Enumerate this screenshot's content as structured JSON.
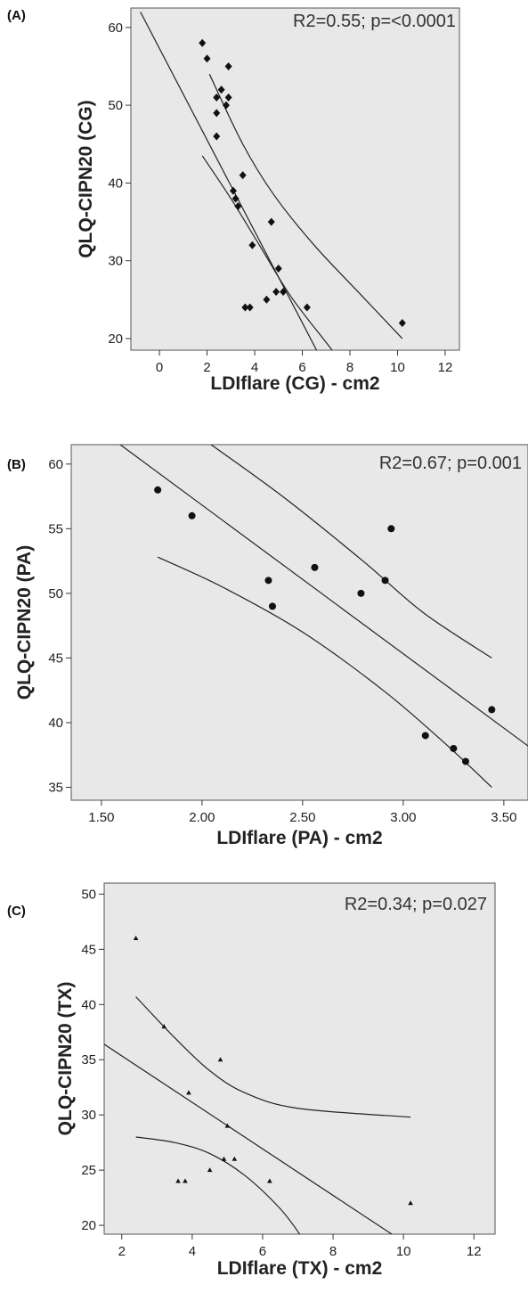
{
  "chart_data": [
    {
      "type": "scatter",
      "panel": "(A)",
      "xlabel": "LDIflare (CG) - cm2",
      "ylabel": "QLQ-CIPN20 (CG)",
      "annotation": "R2=0.55; p=<0.0001",
      "xlim": [
        -1.2,
        12.6
      ],
      "ylim": [
        18.5,
        62.5
      ],
      "xticks": [
        0,
        2,
        4,
        6,
        8,
        10,
        12
      ],
      "yticks": [
        20,
        30,
        40,
        50,
        60
      ],
      "marker": "diamond",
      "points": [
        {
          "x": 1.8,
          "y": 58
        },
        {
          "x": 2.0,
          "y": 56
        },
        {
          "x": 2.9,
          "y": 55
        },
        {
          "x": 2.6,
          "y": 52
        },
        {
          "x": 2.4,
          "y": 51
        },
        {
          "x": 2.9,
          "y": 51
        },
        {
          "x": 2.8,
          "y": 50
        },
        {
          "x": 2.4,
          "y": 49
        },
        {
          "x": 2.4,
          "y": 46
        },
        {
          "x": 3.5,
          "y": 41
        },
        {
          "x": 3.1,
          "y": 39
        },
        {
          "x": 3.2,
          "y": 38
        },
        {
          "x": 3.3,
          "y": 37
        },
        {
          "x": 4.7,
          "y": 35
        },
        {
          "x": 3.9,
          "y": 32
        },
        {
          "x": 5.0,
          "y": 29
        },
        {
          "x": 4.9,
          "y": 26
        },
        {
          "x": 5.2,
          "y": 26
        },
        {
          "x": 4.5,
          "y": 25
        },
        {
          "x": 3.6,
          "y": 24
        },
        {
          "x": 3.8,
          "y": 24
        },
        {
          "x": 6.2,
          "y": 24
        },
        {
          "x": 10.2,
          "y": 22
        }
      ],
      "fit_line": [
        {
          "x": -0.8,
          "y": 62
        },
        {
          "x": 6.6,
          "y": 18.5
        }
      ],
      "ci_upper": [
        {
          "x": 2.1,
          "y": 54
        },
        {
          "x": 3.5,
          "y": 45
        },
        {
          "x": 4.8,
          "y": 38.5
        },
        {
          "x": 6.5,
          "y": 32
        },
        {
          "x": 8.5,
          "y": 25.5
        },
        {
          "x": 10.2,
          "y": 20
        }
      ],
      "ci_lower": [
        {
          "x": 1.8,
          "y": 43.5
        },
        {
          "x": 3.0,
          "y": 38
        },
        {
          "x": 4.2,
          "y": 32
        },
        {
          "x": 5.5,
          "y": 25.5
        },
        {
          "x": 7.0,
          "y": 19.5
        },
        {
          "x": 7.9,
          "y": 16
        }
      ]
    },
    {
      "type": "scatter",
      "panel": "(B)",
      "xlabel": "LDIflare (PA) - cm2",
      "ylabel": "QLQ-CIPN20 (PA)",
      "annotation": "R2=0.67; p=0.001",
      "xlim": [
        1.35,
        3.62
      ],
      "ylim": [
        34,
        61.5
      ],
      "xticks": [
        1.5,
        2.0,
        2.5,
        3.0,
        3.5
      ],
      "xtick_labels": [
        "1.50",
        "2.00",
        "2.50",
        "3.00",
        "3.50"
      ],
      "yticks": [
        35,
        40,
        45,
        50,
        55,
        60
      ],
      "marker": "circle",
      "points": [
        {
          "x": 1.78,
          "y": 58
        },
        {
          "x": 1.95,
          "y": 56
        },
        {
          "x": 2.94,
          "y": 55
        },
        {
          "x": 2.56,
          "y": 52
        },
        {
          "x": 2.33,
          "y": 51
        },
        {
          "x": 2.91,
          "y": 51
        },
        {
          "x": 2.79,
          "y": 50
        },
        {
          "x": 2.35,
          "y": 49
        },
        {
          "x": 3.44,
          "y": 41
        },
        {
          "x": 3.11,
          "y": 39
        },
        {
          "x": 3.25,
          "y": 38
        },
        {
          "x": 3.31,
          "y": 37
        }
      ],
      "fit_line": [
        {
          "x": 1.55,
          "y": 62
        },
        {
          "x": 3.62,
          "y": 38.2
        }
      ],
      "ci_upper": [
        {
          "x": 2.0,
          "y": 62
        },
        {
          "x": 2.4,
          "y": 57.5
        },
        {
          "x": 2.8,
          "y": 52.5
        },
        {
          "x": 3.1,
          "y": 48.5
        },
        {
          "x": 3.44,
          "y": 45
        }
      ],
      "ci_lower": [
        {
          "x": 1.78,
          "y": 52.8
        },
        {
          "x": 2.1,
          "y": 50.5
        },
        {
          "x": 2.5,
          "y": 47
        },
        {
          "x": 2.9,
          "y": 42.5
        },
        {
          "x": 3.2,
          "y": 38.5
        },
        {
          "x": 3.44,
          "y": 35
        }
      ]
    },
    {
      "type": "scatter",
      "panel": "(C)",
      "xlabel": "LDIflare (TX) - cm2",
      "ylabel": "QLQ-CIPN20 (TX)",
      "annotation": "R2=0.34; p=0.027",
      "xlim": [
        1.5,
        12.6
      ],
      "ylim": [
        19.2,
        51
      ],
      "xticks": [
        2,
        4,
        6,
        8,
        10,
        12
      ],
      "yticks": [
        20,
        25,
        30,
        35,
        40,
        45,
        50
      ],
      "marker": "triangle",
      "points": [
        {
          "x": 2.4,
          "y": 46
        },
        {
          "x": 3.2,
          "y": 38
        },
        {
          "x": 4.8,
          "y": 35
        },
        {
          "x": 3.9,
          "y": 32
        },
        {
          "x": 5.0,
          "y": 29
        },
        {
          "x": 4.9,
          "y": 26
        },
        {
          "x": 5.2,
          "y": 26
        },
        {
          "x": 4.5,
          "y": 25
        },
        {
          "x": 3.6,
          "y": 24
        },
        {
          "x": 3.8,
          "y": 24
        },
        {
          "x": 6.2,
          "y": 24
        },
        {
          "x": 10.2,
          "y": 22
        }
      ],
      "fit_line": [
        {
          "x": 1.5,
          "y": 36.4
        },
        {
          "x": 10.0,
          "y": 18.5
        }
      ],
      "ci_upper": [
        {
          "x": 2.4,
          "y": 40.7
        },
        {
          "x": 3.5,
          "y": 37
        },
        {
          "x": 4.5,
          "y": 34
        },
        {
          "x": 5.5,
          "y": 32
        },
        {
          "x": 7.0,
          "y": 30.6
        },
        {
          "x": 10.2,
          "y": 29.8
        }
      ],
      "ci_lower": [
        {
          "x": 2.4,
          "y": 28
        },
        {
          "x": 3.5,
          "y": 27.5
        },
        {
          "x": 4.5,
          "y": 26.5
        },
        {
          "x": 5.5,
          "y": 24.5
        },
        {
          "x": 6.5,
          "y": 21.5
        },
        {
          "x": 7.1,
          "y": 19
        }
      ]
    }
  ]
}
